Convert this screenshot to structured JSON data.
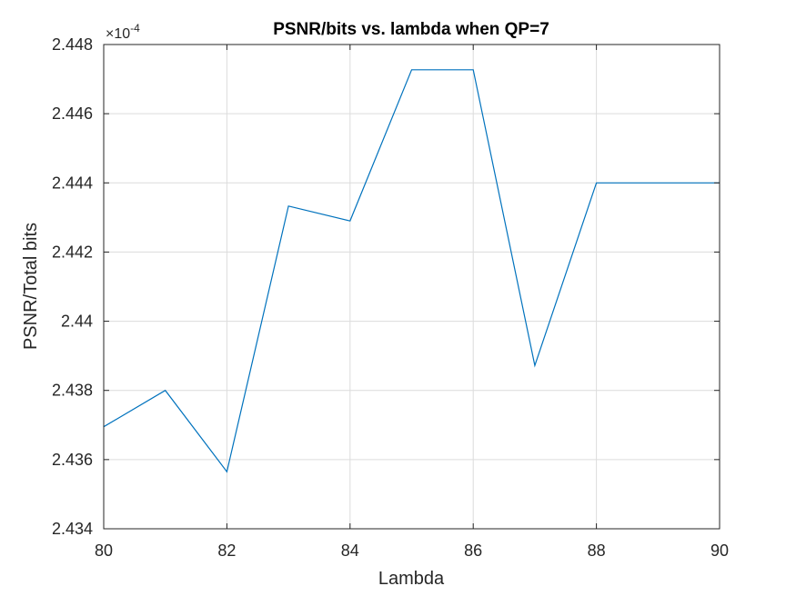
{
  "chart_data": {
    "type": "line",
    "title": "PSNR/bits vs. lambda when QP=7",
    "xlabel": "Lambda",
    "ylabel": "PSNR/Total bits",
    "y_exponent": {
      "base": "×10",
      "power": "-4"
    },
    "xlim": [
      80,
      90
    ],
    "ylim": [
      2.434,
      2.448
    ],
    "x_ticks": [
      80,
      82,
      84,
      86,
      88,
      90
    ],
    "x_tick_labels": [
      "80",
      "82",
      "84",
      "86",
      "88",
      "90"
    ],
    "y_ticks": [
      2.434,
      2.436,
      2.438,
      2.44,
      2.442,
      2.444,
      2.446,
      2.448
    ],
    "y_tick_labels": [
      "2.434",
      "2.436",
      "2.438",
      "2.44",
      "2.442",
      "2.444",
      "2.446",
      "2.448"
    ],
    "grid": true,
    "series": [
      {
        "color": "#0072BD",
        "x": [
          80,
          81,
          82,
          83,
          84,
          85,
          86,
          87,
          88,
          89,
          90
        ],
        "y": [
          2.43695,
          2.438,
          2.43565,
          2.44333,
          2.4429,
          2.44727,
          2.44727,
          2.43872,
          2.444,
          2.444,
          2.444
        ]
      }
    ]
  }
}
